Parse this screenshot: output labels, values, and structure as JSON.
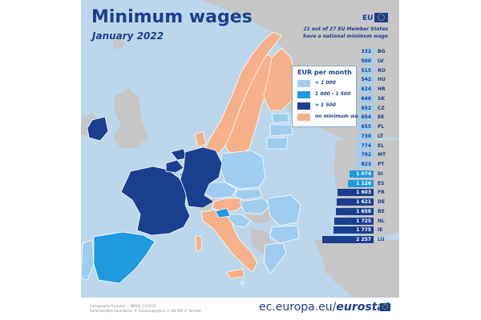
{
  "title": "Minimum wages",
  "subtitle": "January 2022",
  "header_badge": "EU",
  "note_lines": [
    "21 out of 27 EU Member States",
    "have a national minimum wage"
  ],
  "legend": {
    "title": "EUR per month",
    "items": [
      {
        "label": "< 1 000",
        "color": "#9fcdf0"
      },
      {
        "label": "1 000 - 1 500",
        "color": "#1f9ae0"
      },
      {
        "label": "> 1 500",
        "color": "#1b3f8f"
      },
      {
        "label": "no minimum wage",
        "color": "#f6b08a"
      }
    ]
  },
  "chart_data": {
    "type": "bar",
    "orientation": "horizontal",
    "categories": [
      "BG",
      "LV",
      "RO",
      "HU",
      "HR",
      "SK",
      "CZ",
      "EE",
      "PL",
      "LT",
      "EL",
      "MT",
      "PT",
      "SI",
      "ES",
      "FR",
      "DE",
      "BE",
      "NL",
      "IE",
      "LU"
    ],
    "values": [
      332,
      500,
      515,
      542,
      624,
      646,
      652,
      654,
      655,
      730,
      774,
      792,
      823,
      1074,
      1126,
      1603,
      1621,
      1658,
      1725,
      1775,
      2257
    ],
    "labels": [
      "332",
      "500",
      "515",
      "542",
      "624",
      "646",
      "652",
      "654",
      "655",
      "730",
      "774",
      "792",
      "823",
      "1 074",
      "1 126",
      "1 603",
      "1 621",
      "1 658",
      "1 725",
      "1 775",
      "2 257"
    ],
    "classes": [
      "low",
      "low",
      "low",
      "low",
      "low",
      "low",
      "low",
      "low",
      "low",
      "low",
      "low",
      "low",
      "low",
      "mid",
      "mid",
      "high",
      "high",
      "high",
      "high",
      "high",
      "high"
    ],
    "class_colors": {
      "low": "#9fcdf0",
      "mid": "#1f9ae0",
      "high": "#1b3f8f"
    }
  },
  "map": {
    "colors": {
      "sea": "#bcd7ec",
      "non_eu": "#c6c6c6",
      "low": "#9fcdf0",
      "mid": "#1f9ae0",
      "high": "#1b3f8f",
      "none": "#f6b08a",
      "border": "#ffffff"
    }
  },
  "credits": [
    "Cartography: Eurostat — IMAGE, 03/2022",
    "Administrative boundaries: © EuroGeographics © UN-FAO © Turkstat"
  ],
  "footer": {
    "site_plain": "ec.europa.eu/",
    "site_bold": "eurostat"
  }
}
